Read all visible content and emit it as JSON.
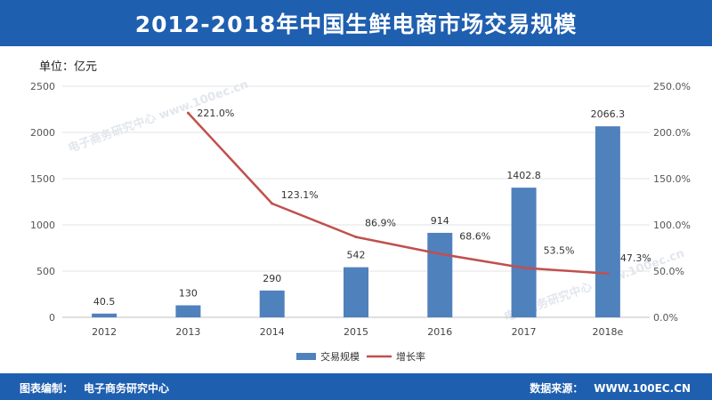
{
  "header": {
    "title": "2012-2018年中国生鲜电商市场交易规模"
  },
  "unit_label": "单位：亿元",
  "footer": {
    "compiler_label": "图表编制：",
    "compiler_value": "电子商务研究中心",
    "source_label": "数据来源：",
    "source_value": "WWW.100EC.CN"
  },
  "watermark": {
    "text": "电子商务研究中心",
    "url": "www.100ec.cn"
  },
  "colors": {
    "bar": "#4f81bd",
    "line": "#c0504d",
    "header": "#1f5fb0"
  },
  "chart_data": {
    "type": "bar",
    "categories": [
      "2012",
      "2013",
      "2014",
      "2015",
      "2016",
      "2017",
      "2018e"
    ],
    "series": [
      {
        "name": "交易规模",
        "type": "bar",
        "axis": "left",
        "values": [
          40.5,
          130,
          290,
          542,
          914,
          1402.8,
          2066.3
        ],
        "labels": [
          "40.5",
          "130",
          "290",
          "542",
          "914",
          "1402.8",
          "2066.3"
        ]
      },
      {
        "name": "增长率",
        "type": "line",
        "axis": "right",
        "values": [
          null,
          221.0,
          123.1,
          86.9,
          68.6,
          53.5,
          47.3
        ],
        "labels": [
          "",
          "221.0%",
          "123.1%",
          "86.9%",
          "68.6%",
          "53.5%",
          "47.3%"
        ]
      }
    ],
    "y_left": {
      "min": 0,
      "max": 2500,
      "ticks": [
        "0",
        "500",
        "1000",
        "1500",
        "2000",
        "2500"
      ]
    },
    "y_right": {
      "min": 0,
      "max": 250,
      "ticks": [
        "0.0%",
        "50.0%",
        "100.0%",
        "150.0%",
        "200.0%",
        "250.0%"
      ]
    },
    "grid": true,
    "legend_position": "bottom"
  }
}
